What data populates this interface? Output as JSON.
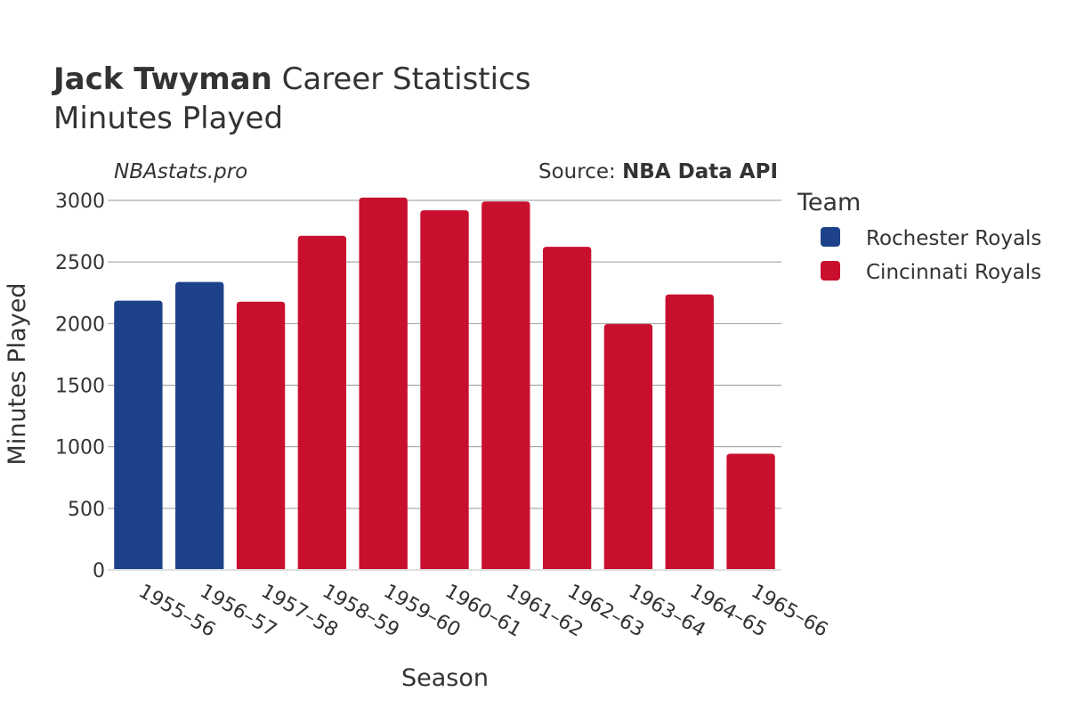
{
  "header": {
    "title_player": "Jack Twyman",
    "title_rest": " Career Statistics",
    "subtitle": "Minutes Played"
  },
  "watermark": "NBAstats.pro",
  "source": {
    "prefix": "Source: ",
    "name": "NBA Data API"
  },
  "legend": {
    "title": "Team",
    "items": [
      {
        "label": "Rochester Royals",
        "color": "#1d428a"
      },
      {
        "label": "Cincinnati Royals",
        "color": "#c8102e"
      }
    ]
  },
  "chart_data": {
    "type": "bar",
    "title": "Jack Twyman Career Statistics",
    "subtitle": "Minutes Played",
    "xlabel": "Season",
    "ylabel": "Minutes Played",
    "ylim": [
      0,
      3000
    ],
    "yticks": [
      0,
      500,
      1000,
      1500,
      2000,
      2500,
      3000
    ],
    "grid": true,
    "legend_position": "right",
    "categories": [
      "1955–56",
      "1956–57",
      "1957–58",
      "1958–59",
      "1959–60",
      "1960–61",
      "1961–62",
      "1962–63",
      "1963–64",
      "1964–65",
      "1965–66"
    ],
    "values": [
      2186,
      2338,
      2178,
      2713,
      3023,
      2920,
      2991,
      2623,
      1996,
      2236,
      943
    ],
    "teams": [
      "Rochester Royals",
      "Rochester Royals",
      "Cincinnati Royals",
      "Cincinnati Royals",
      "Cincinnati Royals",
      "Cincinnati Royals",
      "Cincinnati Royals",
      "Cincinnati Royals",
      "Cincinnati Royals",
      "Cincinnati Royals",
      "Cincinnati Royals"
    ]
  }
}
